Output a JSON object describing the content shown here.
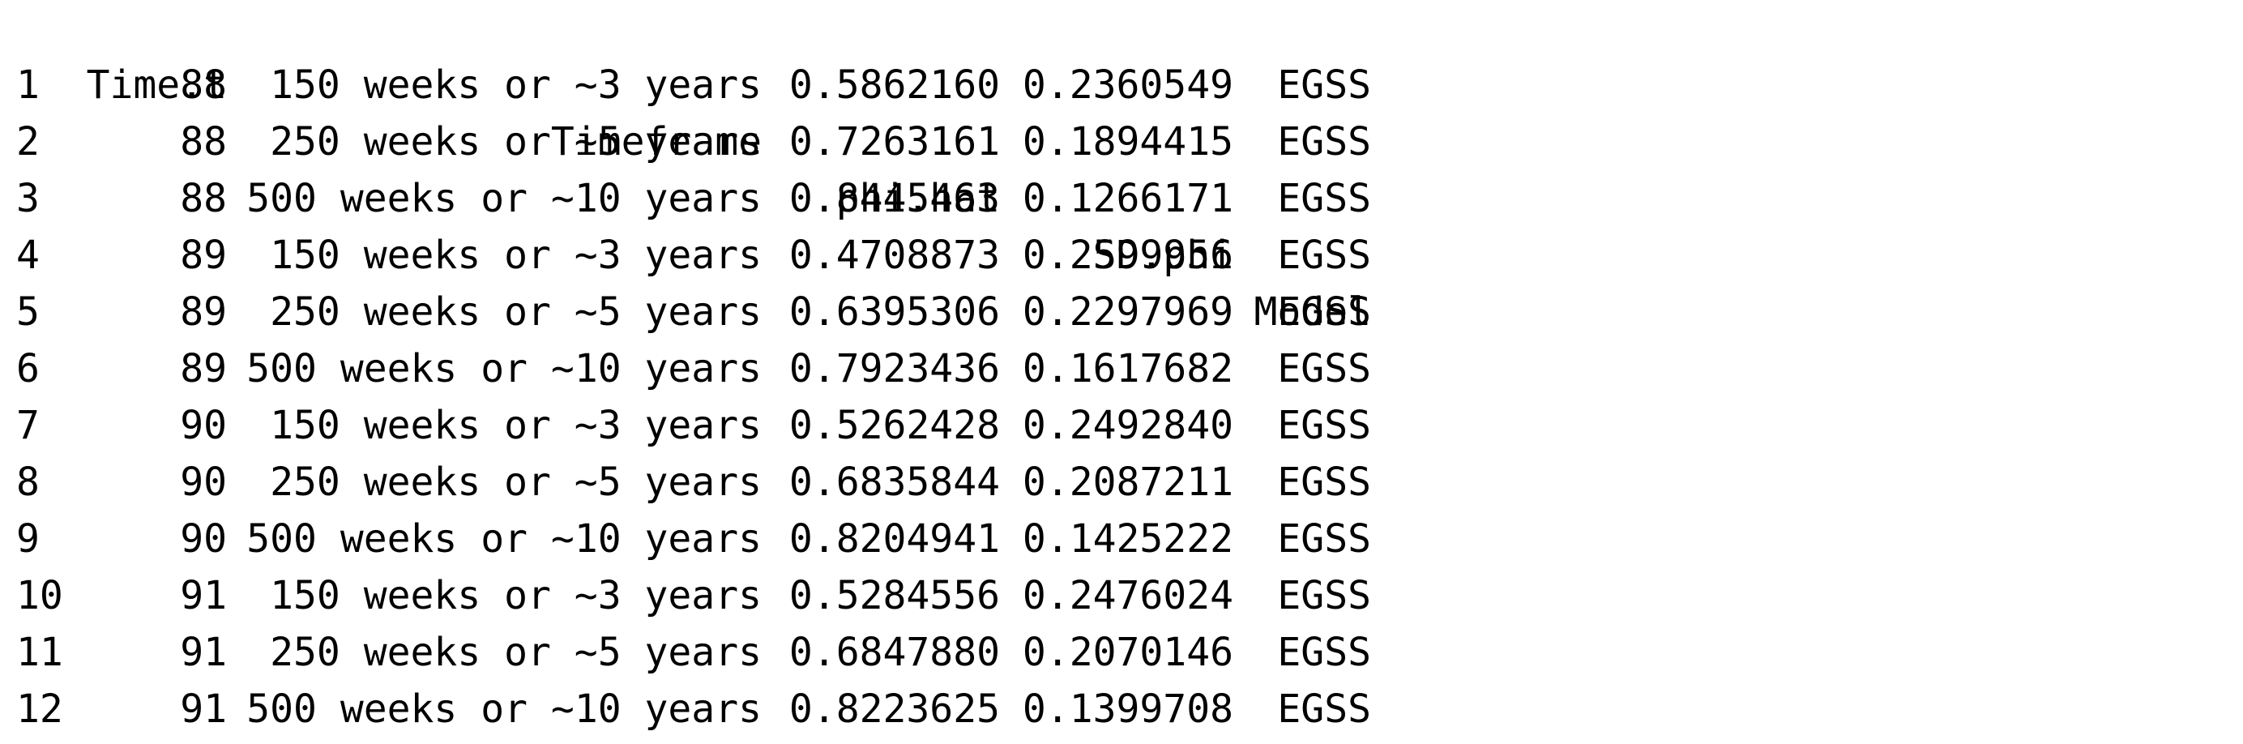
{
  "table": {
    "headers": {
      "time": "Time.t",
      "timeframe": "Timeframe",
      "phi": "phi.hat",
      "sd": "SD.phi",
      "model": "Model"
    },
    "rows": [
      {
        "idx": "1",
        "time": "88",
        "timeframe": "150 weeks or ~3 years",
        "phi": "0.5862160",
        "sd": "0.2360549",
        "model": "EGSS"
      },
      {
        "idx": "2",
        "time": "88",
        "timeframe": "250 weeks or ~5 years",
        "phi": "0.7263161",
        "sd": "0.1894415",
        "model": "EGSS"
      },
      {
        "idx": "3",
        "time": "88",
        "timeframe": "500 weeks or ~10 years",
        "phi": "0.8445463",
        "sd": "0.1266171",
        "model": "EGSS"
      },
      {
        "idx": "4",
        "time": "89",
        "timeframe": "150 weeks or ~3 years",
        "phi": "0.4708873",
        "sd": "0.2599956",
        "model": "EGSS"
      },
      {
        "idx": "5",
        "time": "89",
        "timeframe": "250 weeks or ~5 years",
        "phi": "0.6395306",
        "sd": "0.2297969",
        "model": "EGSS"
      },
      {
        "idx": "6",
        "time": "89",
        "timeframe": "500 weeks or ~10 years",
        "phi": "0.7923436",
        "sd": "0.1617682",
        "model": "EGSS"
      },
      {
        "idx": "7",
        "time": "90",
        "timeframe": "150 weeks or ~3 years",
        "phi": "0.5262428",
        "sd": "0.2492840",
        "model": "EGSS"
      },
      {
        "idx": "8",
        "time": "90",
        "timeframe": "250 weeks or ~5 years",
        "phi": "0.6835844",
        "sd": "0.2087211",
        "model": "EGSS"
      },
      {
        "idx": "9",
        "time": "90",
        "timeframe": "500 weeks or ~10 years",
        "phi": "0.8204941",
        "sd": "0.1425222",
        "model": "EGSS"
      },
      {
        "idx": "10",
        "time": "91",
        "timeframe": "150 weeks or ~3 years",
        "phi": "0.5284556",
        "sd": "0.2476024",
        "model": "EGSS"
      },
      {
        "idx": "11",
        "time": "91",
        "timeframe": "250 weeks or ~5 years",
        "phi": "0.6847880",
        "sd": "0.2070146",
        "model": "EGSS"
      },
      {
        "idx": "12",
        "time": "91",
        "timeframe": "500 weeks or ~10 years",
        "phi": "0.8223625",
        "sd": "0.1399708",
        "model": "EGSS"
      }
    ]
  }
}
